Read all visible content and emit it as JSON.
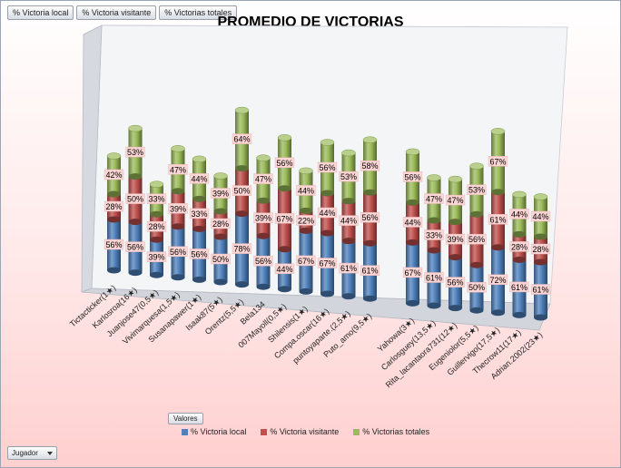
{
  "field_buttons": [
    "% Victoria local",
    "% Victoria visitante",
    "% Victorias totales"
  ],
  "valores_label": "Valores",
  "row_field_label": "Jugador",
  "colors": {
    "local": "#4f81bd",
    "visitante": "#c0504d",
    "totales": "#9bbb59",
    "label_bg": "#fcd5d5"
  },
  "chart_data": {
    "type": "bar",
    "stacked": true,
    "title": "PROMEDIO DE VICTORIAS",
    "xlabel": "",
    "ylabel": "",
    "legend_position": "bottom",
    "categories": [
      "Tictacticker(1★)",
      "Karlosroa(16★)",
      "Juanjose47(0,5★)",
      "Vivimarquesa(1,5★)",
      "Susanapawer(1★)",
      "Isaak87(5★)",
      "Orentz(5,5★)",
      "Bela134",
      "007Mayoll(0,5★)",
      "Shilensis(1★)",
      "Compa.oscar(16★)",
      "puntoyaparte.(2,5★)",
      "Puto_amo(9,5★)",
      "Yahowa(3★)",
      "Carlosguey(13,5★)",
      "Rita_lacantaora731(12★)",
      "Eugeniolor(5,5★)",
      "Guillervigo(17,5★)",
      "Thecrow11(17★)",
      "Adrian.2002(23★)"
    ],
    "series": [
      {
        "name": "% Victoria local",
        "labels": [
          "56%",
          "56%",
          "39%",
          "56%",
          "56%",
          "50%",
          "78%",
          "56%",
          "44%",
          "67%",
          "67%",
          "61%",
          "61%",
          "67%",
          "61%",
          "56%",
          "50%",
          "72%",
          "61%",
          "61%"
        ],
        "values": [
          56,
          56,
          39,
          56,
          56,
          50,
          78,
          56,
          44,
          67,
          67,
          61,
          61,
          67,
          61,
          56,
          50,
          72,
          61,
          61
        ]
      },
      {
        "name": "% Victoria visitante",
        "labels": [
          "28%",
          "50%",
          "28%",
          "39%",
          "33%",
          "28%",
          "50%",
          "39%",
          "67%",
          "22%",
          "44%",
          "44%",
          "56%",
          "44%",
          "33%",
          "39%",
          "56%",
          "61%",
          "28%",
          "28%"
        ],
        "values": [
          28,
          50,
          28,
          39,
          33,
          28,
          50,
          39,
          67,
          22,
          44,
          44,
          56,
          44,
          33,
          39,
          56,
          61,
          28,
          28
        ]
      },
      {
        "name": "% Victorias totales",
        "labels": [
          "42%",
          "53%",
          "33%",
          "47%",
          "44%",
          "39%",
          "64%",
          "47%",
          "56%",
          "44%",
          "56%",
          "53%",
          "58%",
          "56%",
          "47%",
          "47%",
          "53%",
          "67%",
          "44%",
          "44%"
        ],
        "values": [
          42,
          53,
          33,
          47,
          44,
          39,
          64,
          47,
          56,
          44,
          56,
          53,
          58,
          56,
          47,
          47,
          53,
          67,
          44,
          44
        ]
      }
    ]
  }
}
